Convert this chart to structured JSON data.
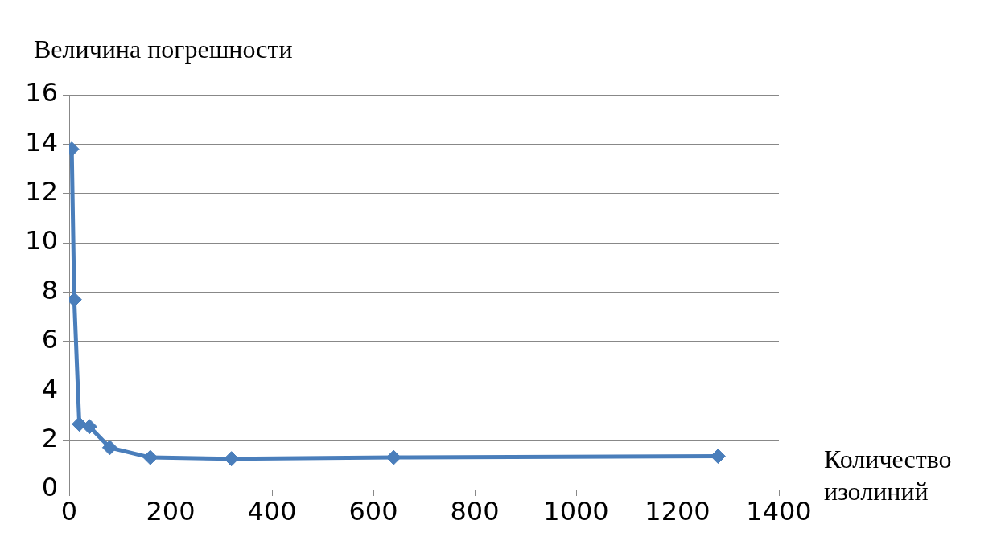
{
  "chart_data": {
    "type": "line",
    "xlabel": "Количество изолиний",
    "ylabel": "Величина погрешности",
    "x": [
      5,
      10,
      20,
      40,
      80,
      160,
      320,
      640,
      1280
    ],
    "series": [
      {
        "color": "#4a7ebb",
        "values": [
          13.8,
          7.7,
          2.65,
          2.55,
          1.7,
          1.3,
          1.25,
          1.3,
          1.35
        ]
      }
    ],
    "xlim": [
      0,
      1400
    ],
    "xticks": [
      0,
      200,
      400,
      600,
      800,
      1000,
      1200,
      1400
    ],
    "ylim": [
      0,
      16
    ],
    "yticks": [
      0,
      2,
      4,
      6,
      8,
      10,
      12,
      14,
      16
    ],
    "grid": "y",
    "legend": false,
    "marker": "diamond",
    "line_style": "solid"
  }
}
